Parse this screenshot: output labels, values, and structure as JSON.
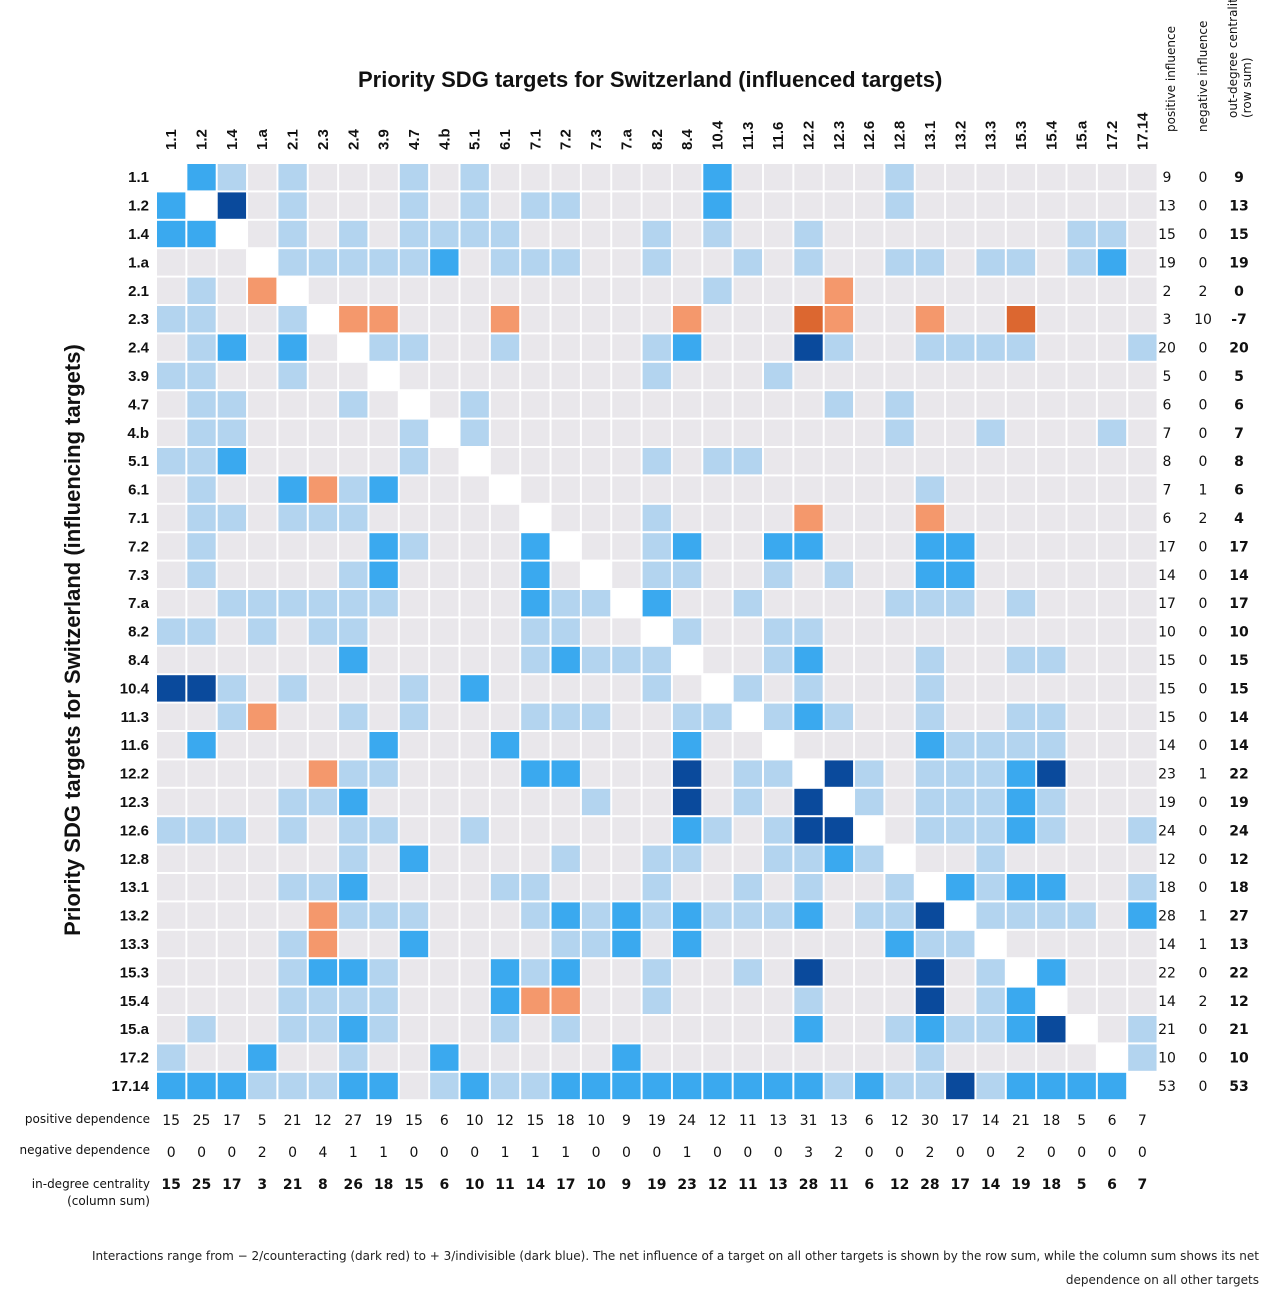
{
  "chart_data": {
    "type": "heatmap",
    "title": "Priority SDG targets for Switzerland (influenced targets)",
    "ylabel": "Priority SDG targets for Switzerland (influencing targets)",
    "targets": [
      "1.1",
      "1.2",
      "1.4",
      "1.a",
      "2.1",
      "2.3",
      "2.4",
      "3.9",
      "4.7",
      "4.b",
      "5.1",
      "6.1",
      "7.1",
      "7.2",
      "7.3",
      "7.a",
      "8.2",
      "8.4",
      "10.4",
      "11.3",
      "11.6",
      "12.2",
      "12.3",
      "12.6",
      "12.8",
      "13.1",
      "13.2",
      "13.3",
      "15.3",
      "15.4",
      "15.a",
      "17.2",
      "17.14"
    ],
    "scale": "-2 (counteracting) to +3 (indivisible); 0 = no interaction",
    "colors": {
      "-2": "#dc6730",
      "-1": "#f4986c",
      "0": "#e9e7eb",
      "1": "#b3d4ef",
      "2": "#3aa9ef",
      "3": "#0a4a9c",
      "diagonal": "#ffffff"
    },
    "matrix": [
      [
        null,
        2,
        1,
        0,
        1,
        0,
        0,
        0,
        1,
        0,
        1,
        0,
        0,
        0,
        0,
        0,
        0,
        0,
        2,
        0,
        0,
        0,
        0,
        0,
        1,
        0,
        0,
        0,
        0,
        0,
        0,
        0,
        0
      ],
      [
        2,
        null,
        3,
        0,
        1,
        0,
        0,
        0,
        1,
        0,
        1,
        0,
        1,
        1,
        0,
        0,
        0,
        0,
        2,
        0,
        0,
        0,
        0,
        0,
        1,
        0,
        0,
        0,
        0,
        0,
        0,
        0,
        0
      ],
      [
        2,
        2,
        null,
        0,
        1,
        0,
        1,
        0,
        1,
        1,
        1,
        1,
        0,
        0,
        0,
        0,
        1,
        0,
        1,
        0,
        0,
        1,
        0,
        0,
        0,
        0,
        0,
        0,
        0,
        0,
        1,
        1,
        0
      ],
      [
        0,
        0,
        0,
        null,
        1,
        1,
        1,
        1,
        1,
        2,
        0,
        1,
        1,
        1,
        0,
        0,
        1,
        0,
        0,
        1,
        0,
        1,
        0,
        0,
        1,
        1,
        0,
        1,
        1,
        0,
        1,
        2,
        0
      ],
      [
        0,
        1,
        0,
        -1,
        null,
        0,
        0,
        0,
        0,
        0,
        0,
        0,
        0,
        0,
        0,
        0,
        0,
        0,
        1,
        0,
        0,
        0,
        -1,
        0,
        0,
        0,
        0,
        0,
        0,
        0,
        0,
        0,
        0
      ],
      [
        1,
        1,
        0,
        0,
        1,
        null,
        -1,
        -1,
        0,
        0,
        0,
        -1,
        0,
        0,
        0,
        0,
        0,
        -1,
        0,
        0,
        0,
        -2,
        -1,
        0,
        0,
        -1,
        0,
        0,
        -2,
        0,
        0,
        0,
        0
      ],
      [
        0,
        1,
        2,
        0,
        2,
        0,
        null,
        1,
        1,
        0,
        0,
        1,
        0,
        0,
        0,
        0,
        1,
        2,
        0,
        0,
        0,
        3,
        1,
        0,
        0,
        1,
        1,
        1,
        1,
        0,
        0,
        0,
        1
      ],
      [
        1,
        1,
        0,
        0,
        1,
        0,
        0,
        null,
        0,
        0,
        0,
        0,
        0,
        0,
        0,
        0,
        1,
        0,
        0,
        0,
        1,
        0,
        0,
        0,
        0,
        0,
        0,
        0,
        0,
        0,
        0,
        0,
        0
      ],
      [
        0,
        1,
        1,
        0,
        0,
        0,
        1,
        0,
        null,
        0,
        1,
        0,
        0,
        0,
        0,
        0,
        0,
        0,
        0,
        0,
        0,
        0,
        1,
        0,
        1,
        0,
        0,
        0,
        0,
        0,
        0,
        0,
        0
      ],
      [
        0,
        1,
        1,
        0,
        0,
        0,
        0,
        0,
        1,
        null,
        1,
        0,
        0,
        0,
        0,
        0,
        0,
        0,
        0,
        0,
        0,
        0,
        0,
        0,
        1,
        0,
        0,
        1,
        0,
        0,
        0,
        1,
        0
      ],
      [
        1,
        1,
        2,
        0,
        0,
        0,
        0,
        0,
        1,
        0,
        null,
        0,
        0,
        0,
        0,
        0,
        1,
        0,
        1,
        1,
        0,
        0,
        0,
        0,
        0,
        0,
        0,
        0,
        0,
        0,
        0,
        0,
        0
      ],
      [
        0,
        1,
        0,
        0,
        2,
        -1,
        1,
        2,
        0,
        0,
        0,
        null,
        0,
        0,
        0,
        0,
        0,
        0,
        0,
        0,
        0,
        0,
        0,
        0,
        0,
        1,
        0,
        0,
        0,
        0,
        0,
        0,
        0
      ],
      [
        0,
        1,
        1,
        0,
        1,
        1,
        1,
        0,
        0,
        0,
        0,
        0,
        null,
        0,
        0,
        0,
        1,
        0,
        0,
        0,
        0,
        -1,
        0,
        0,
        0,
        -1,
        0,
        0,
        0,
        0,
        0,
        0,
        0
      ],
      [
        0,
        1,
        0,
        0,
        0,
        0,
        0,
        2,
        1,
        0,
        0,
        0,
        2,
        null,
        0,
        0,
        1,
        2,
        0,
        0,
        2,
        2,
        0,
        0,
        0,
        2,
        2,
        0,
        0,
        0,
        0,
        0,
        0
      ],
      [
        0,
        1,
        0,
        0,
        0,
        0,
        1,
        2,
        0,
        0,
        0,
        0,
        2,
        0,
        null,
        0,
        1,
        1,
        0,
        0,
        1,
        0,
        1,
        0,
        0,
        2,
        2,
        0,
        0,
        0,
        0,
        0,
        0
      ],
      [
        0,
        0,
        1,
        1,
        1,
        1,
        1,
        1,
        0,
        0,
        0,
        0,
        2,
        1,
        1,
        null,
        2,
        0,
        0,
        1,
        0,
        0,
        0,
        0,
        1,
        1,
        1,
        0,
        1,
        0,
        0,
        0,
        0
      ],
      [
        1,
        1,
        0,
        1,
        0,
        1,
        1,
        0,
        0,
        0,
        0,
        0,
        1,
        1,
        0,
        0,
        null,
        1,
        0,
        0,
        1,
        1,
        0,
        0,
        0,
        0,
        0,
        0,
        0,
        0,
        0,
        0,
        0
      ],
      [
        0,
        0,
        0,
        0,
        0,
        0,
        2,
        0,
        0,
        0,
        0,
        0,
        1,
        2,
        1,
        1,
        1,
        null,
        0,
        0,
        1,
        2,
        0,
        0,
        0,
        1,
        0,
        0,
        1,
        1,
        0,
        0,
        0
      ],
      [
        3,
        3,
        1,
        0,
        1,
        0,
        0,
        0,
        1,
        0,
        2,
        0,
        0,
        0,
        0,
        0,
        1,
        0,
        null,
        1,
        0,
        1,
        0,
        0,
        0,
        1,
        0,
        0,
        0,
        0,
        0,
        0,
        0
      ],
      [
        0,
        0,
        1,
        -1,
        0,
        0,
        1,
        0,
        1,
        0,
        0,
        0,
        1,
        1,
        1,
        0,
        0,
        1,
        1,
        null,
        1,
        2,
        1,
        0,
        0,
        1,
        0,
        0,
        1,
        1,
        0,
        0,
        0
      ],
      [
        0,
        2,
        0,
        0,
        0,
        0,
        0,
        2,
        0,
        0,
        0,
        2,
        0,
        0,
        0,
        0,
        0,
        2,
        0,
        0,
        null,
        0,
        0,
        0,
        0,
        2,
        1,
        1,
        1,
        1,
        0,
        0,
        0
      ],
      [
        0,
        0,
        0,
        0,
        0,
        -1,
        1,
        1,
        0,
        0,
        0,
        0,
        2,
        2,
        0,
        0,
        0,
        3,
        0,
        1,
        1,
        null,
        3,
        1,
        0,
        1,
        1,
        1,
        2,
        3,
        0,
        0,
        0
      ],
      [
        0,
        0,
        0,
        0,
        1,
        1,
        2,
        0,
        0,
        0,
        0,
        0,
        0,
        0,
        1,
        0,
        0,
        3,
        0,
        1,
        0,
        3,
        null,
        1,
        0,
        1,
        1,
        1,
        2,
        1,
        0,
        0,
        0
      ],
      [
        1,
        1,
        1,
        0,
        1,
        0,
        1,
        1,
        0,
        0,
        1,
        0,
        0,
        0,
        0,
        0,
        0,
        2,
        1,
        0,
        1,
        3,
        3,
        null,
        0,
        1,
        1,
        1,
        2,
        1,
        0,
        0,
        1
      ],
      [
        0,
        0,
        0,
        0,
        0,
        0,
        1,
        0,
        2,
        0,
        0,
        0,
        0,
        1,
        0,
        0,
        1,
        1,
        0,
        0,
        1,
        1,
        2,
        1,
        null,
        0,
        0,
        1,
        0,
        0,
        0,
        0,
        0
      ],
      [
        0,
        0,
        0,
        0,
        1,
        1,
        2,
        0,
        0,
        0,
        0,
        1,
        1,
        0,
        0,
        0,
        1,
        0,
        0,
        1,
        0,
        1,
        0,
        0,
        1,
        null,
        2,
        1,
        2,
        2,
        0,
        0,
        1
      ],
      [
        0,
        0,
        0,
        0,
        0,
        -1,
        1,
        1,
        1,
        0,
        0,
        0,
        1,
        2,
        1,
        2,
        1,
        2,
        1,
        1,
        1,
        2,
        0,
        1,
        1,
        3,
        null,
        1,
        1,
        1,
        1,
        0,
        2
      ],
      [
        0,
        0,
        0,
        0,
        1,
        -1,
        0,
        0,
        2,
        0,
        0,
        0,
        0,
        1,
        1,
        2,
        0,
        2,
        0,
        0,
        0,
        0,
        0,
        0,
        2,
        1,
        1,
        null,
        0,
        0,
        0,
        0,
        0
      ],
      [
        0,
        0,
        0,
        0,
        1,
        2,
        2,
        1,
        0,
        0,
        0,
        2,
        1,
        2,
        0,
        0,
        1,
        0,
        0,
        1,
        0,
        3,
        0,
        0,
        0,
        3,
        0,
        1,
        null,
        2,
        0,
        0,
        0
      ],
      [
        0,
        0,
        0,
        0,
        1,
        1,
        1,
        1,
        0,
        0,
        0,
        2,
        -1,
        -1,
        0,
        0,
        1,
        0,
        0,
        0,
        0,
        1,
        0,
        0,
        0,
        3,
        0,
        1,
        2,
        null,
        0,
        0,
        0
      ],
      [
        0,
        1,
        0,
        0,
        1,
        1,
        2,
        1,
        0,
        0,
        0,
        1,
        0,
        1,
        0,
        0,
        0,
        0,
        0,
        0,
        0,
        2,
        0,
        0,
        1,
        2,
        1,
        1,
        2,
        3,
        null,
        0,
        1
      ],
      [
        1,
        0,
        0,
        2,
        0,
        0,
        1,
        0,
        0,
        2,
        0,
        0,
        0,
        0,
        0,
        2,
        0,
        0,
        0,
        0,
        0,
        0,
        0,
        0,
        0,
        1,
        0,
        0,
        0,
        0,
        0,
        null,
        1
      ],
      [
        2,
        2,
        2,
        1,
        1,
        1,
        2,
        2,
        0,
        1,
        2,
        1,
        1,
        2,
        2,
        2,
        2,
        2,
        2,
        2,
        2,
        2,
        1,
        2,
        1,
        1,
        3,
        1,
        2,
        2,
        2,
        2,
        null
      ]
    ],
    "row_header_labels": [
      "positive influence",
      "negative influence",
      "out-degree centrality\n(row sum)"
    ],
    "positive_influence": [
      9,
      13,
      15,
      19,
      2,
      3,
      20,
      5,
      6,
      7,
      8,
      7,
      6,
      17,
      14,
      17,
      10,
      15,
      15,
      15,
      14,
      23,
      19,
      24,
      12,
      18,
      28,
      14,
      22,
      14,
      21,
      10,
      53
    ],
    "negative_influence": [
      0,
      0,
      0,
      0,
      2,
      10,
      0,
      0,
      0,
      0,
      0,
      1,
      2,
      0,
      0,
      0,
      0,
      0,
      0,
      0,
      0,
      1,
      0,
      0,
      0,
      0,
      1,
      1,
      0,
      2,
      0,
      0,
      0
    ],
    "out_degree_centrality": [
      9,
      13,
      15,
      19,
      0,
      -7,
      20,
      5,
      6,
      7,
      8,
      6,
      4,
      17,
      14,
      17,
      10,
      15,
      15,
      14,
      14,
      22,
      19,
      24,
      12,
      18,
      27,
      13,
      22,
      12,
      21,
      10,
      53
    ],
    "bottom_row_labels": [
      "positive dependence",
      "negative dependence",
      "in-degree centrality\n(column sum)"
    ],
    "positive_dependence": [
      15,
      25,
      17,
      5,
      21,
      12,
      27,
      19,
      15,
      6,
      10,
      12,
      15,
      18,
      10,
      9,
      19,
      24,
      12,
      11,
      13,
      31,
      13,
      6,
      12,
      30,
      17,
      14,
      21,
      18,
      5,
      6,
      7
    ],
    "negative_dependence": [
      0,
      0,
      0,
      2,
      0,
      4,
      1,
      1,
      0,
      0,
      0,
      1,
      1,
      1,
      0,
      0,
      0,
      1,
      0,
      0,
      0,
      3,
      2,
      0,
      0,
      2,
      0,
      0,
      2,
      0,
      0,
      0,
      0
    ],
    "in_degree_centrality": [
      15,
      25,
      17,
      3,
      21,
      8,
      26,
      18,
      15,
      6,
      10,
      11,
      14,
      17,
      10,
      9,
      19,
      23,
      12,
      11,
      13,
      28,
      11,
      6,
      12,
      28,
      17,
      14,
      19,
      18,
      5,
      6,
      7
    ]
  },
  "caption": {
    "line1": "Interactions range from − 2/counteracting (dark red) to + 3/indivisible (dark blue). The net influence of a target on all other targets is shown by the row sum, while the column sum shows its net",
    "line2": "dependence on all other targets"
  }
}
